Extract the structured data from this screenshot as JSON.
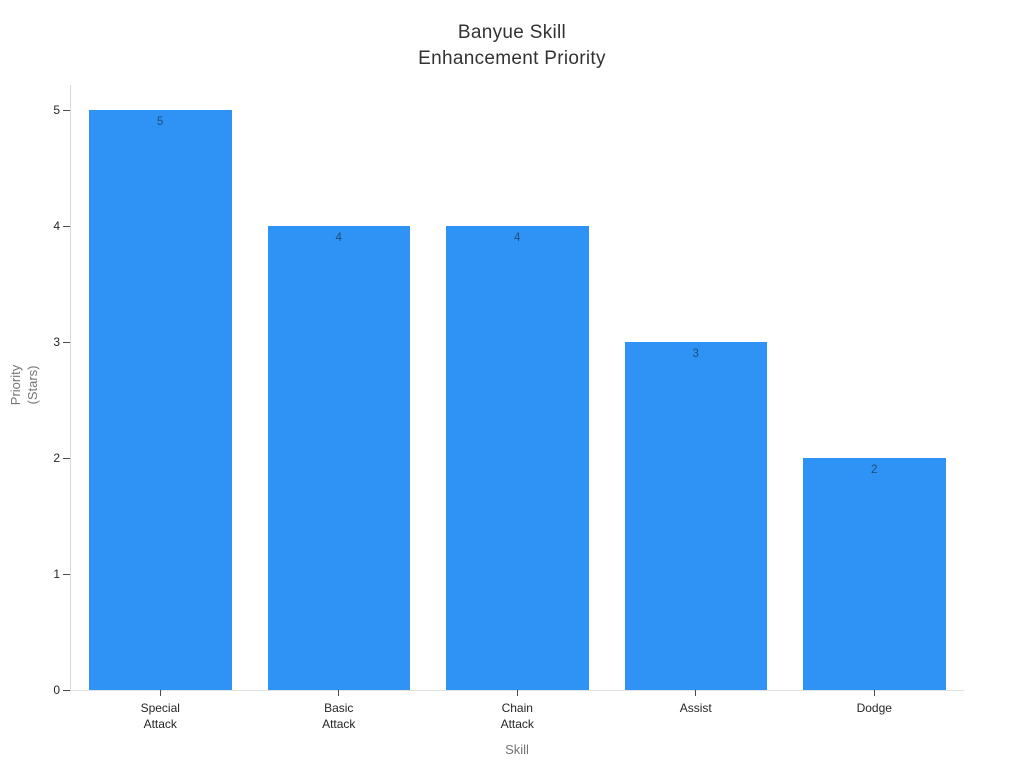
{
  "chart_data": {
    "type": "bar",
    "title": "Banyue Skill Enhancement Priority",
    "title_lines": [
      "Banyue Skill",
      "Enhancement Priority"
    ],
    "xlabel": "Skill",
    "ylabel": "Priority (Stars)",
    "ylabel_lines": [
      "Priority",
      "(Stars)"
    ],
    "categories": [
      "Special Attack",
      "Basic Attack",
      "Chain Attack",
      "Assist",
      "Dodge"
    ],
    "category_lines": [
      [
        "Special",
        "Attack"
      ],
      [
        "Basic",
        "Attack"
      ],
      [
        "Chain",
        "Attack"
      ],
      [
        "Assist"
      ],
      [
        "Dodge"
      ]
    ],
    "values": [
      5,
      4,
      4,
      3,
      2
    ],
    "value_labels": [
      "5",
      "4",
      "4",
      "3",
      "2"
    ],
    "ylim": [
      0,
      5
    ],
    "yticks": [
      0,
      1,
      2,
      3,
      4,
      5
    ],
    "grid": false,
    "legend": null,
    "colors": {
      "bar_fill": "#2E93F5",
      "value_label": "#1f4e79",
      "tick_label": "#262626",
      "axis_title": "#757575",
      "title": "#333333",
      "spine": "#d9d9d9"
    }
  }
}
